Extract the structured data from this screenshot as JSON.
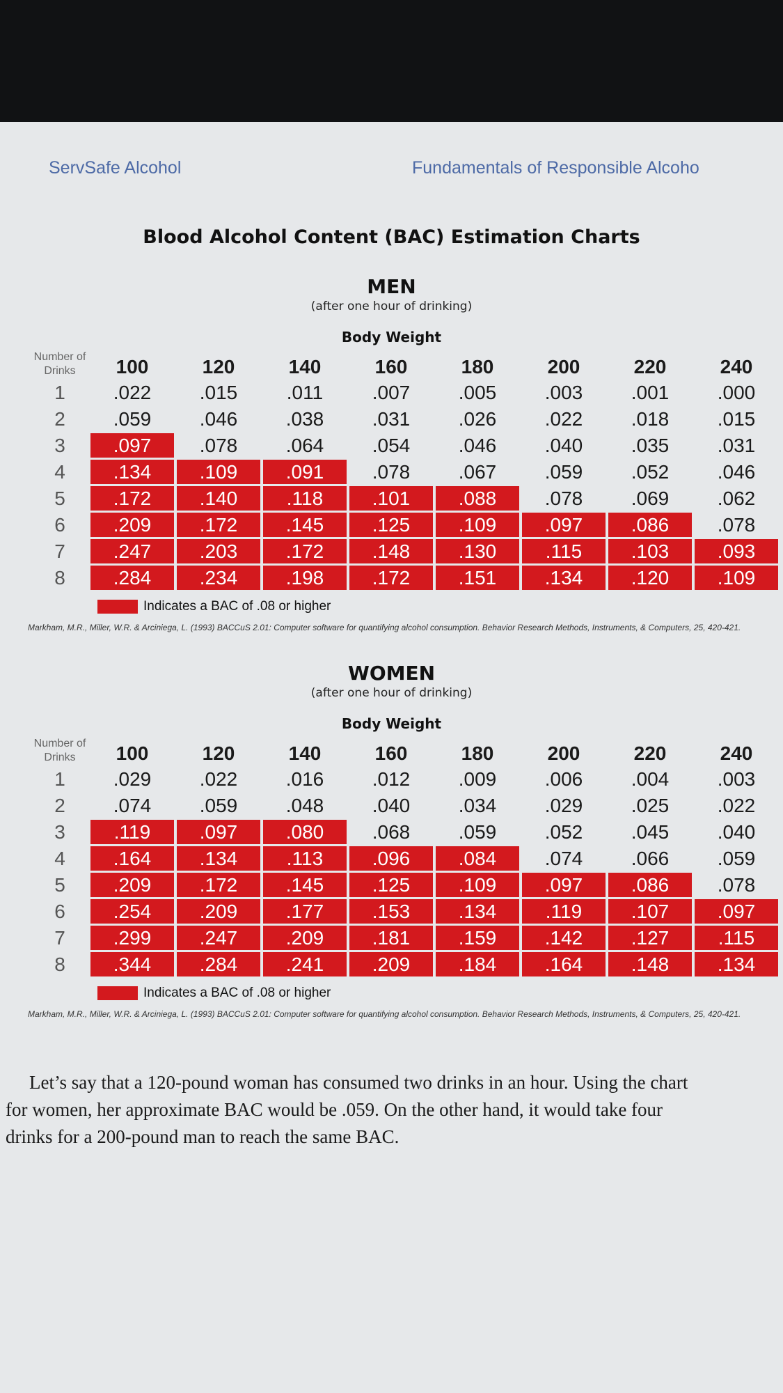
{
  "header": {
    "left": "ServSafe Alcohol",
    "right": "Fundamentals of Responsible Alcoho"
  },
  "title": "Blood Alcohol Content (BAC) Estimation Charts",
  "charts": [
    {
      "heading": "MEN",
      "subheading": "(after one hour of drinking)",
      "column_group": "Body Weight",
      "row_label": "Number of Drinks",
      "weights": [
        100,
        120,
        140,
        160,
        180,
        200,
        220,
        240
      ],
      "rows": [
        {
          "drinks": 1,
          "values": [
            ".022",
            ".015",
            ".011",
            ".007",
            ".005",
            ".003",
            ".001",
            ".000"
          ]
        },
        {
          "drinks": 2,
          "values": [
            ".059",
            ".046",
            ".038",
            ".031",
            ".026",
            ".022",
            ".018",
            ".015"
          ]
        },
        {
          "drinks": 3,
          "values": [
            ".097",
            ".078",
            ".064",
            ".054",
            ".046",
            ".040",
            ".035",
            ".031"
          ]
        },
        {
          "drinks": 4,
          "values": [
            ".134",
            ".109",
            ".091",
            ".078",
            ".067",
            ".059",
            ".052",
            ".046"
          ]
        },
        {
          "drinks": 5,
          "values": [
            ".172",
            ".140",
            ".118",
            ".101",
            ".088",
            ".078",
            ".069",
            ".062"
          ]
        },
        {
          "drinks": 6,
          "values": [
            ".209",
            ".172",
            ".145",
            ".125",
            ".109",
            ".097",
            ".086",
            ".078"
          ]
        },
        {
          "drinks": 7,
          "values": [
            ".247",
            ".203",
            ".172",
            ".148",
            ".130",
            ".115",
            ".103",
            ".093"
          ]
        },
        {
          "drinks": 8,
          "values": [
            ".284",
            ".234",
            ".198",
            ".172",
            ".151",
            ".134",
            ".120",
            ".109"
          ]
        }
      ],
      "legend": {
        "prefix": "Indicates a BAC of ",
        "threshold": ".08",
        "suffix": " or higher"
      },
      "citation": "Markham, M.R., Miller, W.R. & Arciniega, L. (1993) BACCuS 2.01: Computer software for quantifying alcohol consumption. Behavior Research Methods, Instruments, & Computers, 25, 420-421."
    },
    {
      "heading": "WOMEN",
      "subheading": "(after one hour of drinking)",
      "column_group": "Body Weight",
      "row_label": "Number of Drinks",
      "weights": [
        100,
        120,
        140,
        160,
        180,
        200,
        220,
        240
      ],
      "rows": [
        {
          "drinks": 1,
          "values": [
            ".029",
            ".022",
            ".016",
            ".012",
            ".009",
            ".006",
            ".004",
            ".003"
          ]
        },
        {
          "drinks": 2,
          "values": [
            ".074",
            ".059",
            ".048",
            ".040",
            ".034",
            ".029",
            ".025",
            ".022"
          ]
        },
        {
          "drinks": 3,
          "values": [
            ".119",
            ".097",
            ".080",
            ".068",
            ".059",
            ".052",
            ".045",
            ".040"
          ]
        },
        {
          "drinks": 4,
          "values": [
            ".164",
            ".134",
            ".113",
            ".096",
            ".084",
            ".074",
            ".066",
            ".059"
          ]
        },
        {
          "drinks": 5,
          "values": [
            ".209",
            ".172",
            ".145",
            ".125",
            ".109",
            ".097",
            ".086",
            ".078"
          ]
        },
        {
          "drinks": 6,
          "values": [
            ".254",
            ".209",
            ".177",
            ".153",
            ".134",
            ".119",
            ".107",
            ".097"
          ]
        },
        {
          "drinks": 7,
          "values": [
            ".299",
            ".247",
            ".209",
            ".181",
            ".159",
            ".142",
            ".127",
            ".115"
          ]
        },
        {
          "drinks": 8,
          "values": [
            ".344",
            ".284",
            ".241",
            ".209",
            ".184",
            ".164",
            ".148",
            ".134"
          ]
        }
      ],
      "legend": {
        "prefix": "Indicates a BAC of ",
        "threshold": ".08",
        "suffix": " or higher"
      },
      "citation": "Markham, M.R., Miller, W.R. & Arciniega, L. (1993) BACCuS 2.01: Computer software for quantifying alcohol consumption. Behavior Research Methods, Instruments, & Computers, 25, 420-421."
    }
  ],
  "paragraph": "Let’s say that a 120-pound woman has consumed two drinks in an hour. Using the chart for women, her approximate BAC would be .059. On the other hand, it would take four drinks for a 200-pound man to reach the same BAC."
}
